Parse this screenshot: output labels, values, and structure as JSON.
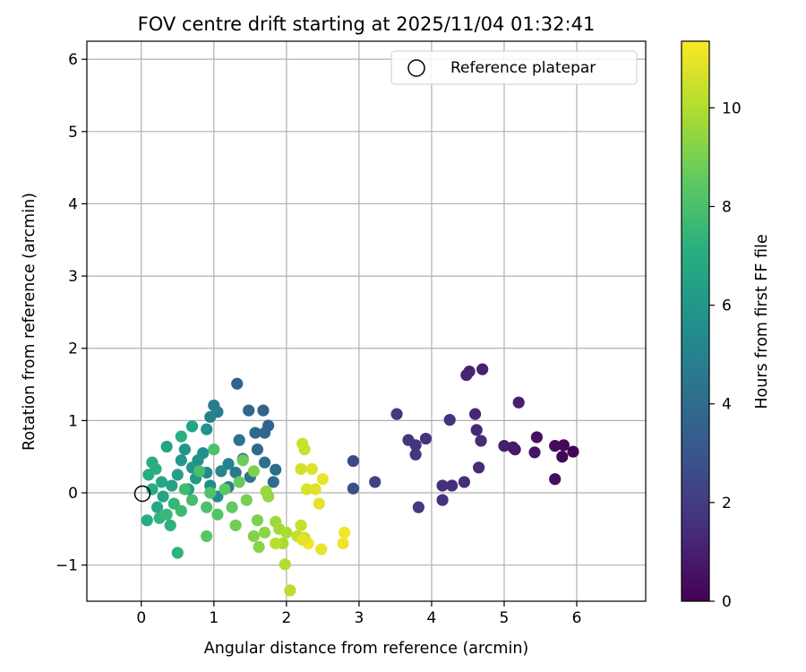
{
  "chart_data": {
    "type": "scatter",
    "title": "FOV centre drift starting at 2025/11/04 01:32:41",
    "xlabel": "Angular distance from reference (arcmin)",
    "ylabel": "Rotation from reference (arcmin)",
    "xlim": [
      -0.75,
      6.95
    ],
    "ylim": [
      -1.5,
      6.25
    ],
    "xticks": [
      0,
      1,
      2,
      3,
      4,
      5,
      6
    ],
    "yticks": [
      -1,
      0,
      1,
      2,
      3,
      4,
      5,
      6
    ],
    "xtick_labels": [
      "0",
      "1",
      "2",
      "3",
      "4",
      "5",
      "6"
    ],
    "ytick_labels": [
      "−1",
      "0",
      "1",
      "2",
      "3",
      "4",
      "5",
      "6"
    ],
    "grid": true,
    "legend": {
      "placement": "top-right",
      "label": "Reference platepar"
    },
    "reference_point": {
      "x": 0,
      "y": 0
    },
    "colorbar": {
      "label": "Hours from first FF file",
      "colormap": "viridis",
      "range": [
        0,
        11.35
      ],
      "ticks": [
        0,
        2,
        4,
        6,
        8,
        10
      ],
      "tick_labels": [
        "0",
        "2",
        "4",
        "6",
        "8",
        "10"
      ]
    },
    "points": [
      [
        5.95,
        0.57,
        0.1
      ],
      [
        5.8,
        0.5,
        0.15
      ],
      [
        5.82,
        0.66,
        0.25
      ],
      [
        5.7,
        0.65,
        0.35
      ],
      [
        5.7,
        0.19,
        0.45
      ],
      [
        5.45,
        0.77,
        0.55
      ],
      [
        5.42,
        0.56,
        0.65
      ],
      [
        5.15,
        0.6,
        0.75
      ],
      [
        5.12,
        0.63,
        0.85
      ],
      [
        5.0,
        0.65,
        0.95
      ],
      [
        5.2,
        1.25,
        1.0
      ],
      [
        4.7,
        1.71,
        1.1
      ],
      [
        4.52,
        1.68,
        1.15
      ],
      [
        4.48,
        1.63,
        1.2
      ],
      [
        4.6,
        1.09,
        1.25
      ],
      [
        4.62,
        0.87,
        1.3
      ],
      [
        4.68,
        0.72,
        1.35
      ],
      [
        4.65,
        0.35,
        1.4
      ],
      [
        4.45,
        0.15,
        1.45
      ],
      [
        4.28,
        0.1,
        1.5
      ],
      [
        4.15,
        0.1,
        1.55
      ],
      [
        4.15,
        -0.1,
        1.6
      ],
      [
        4.25,
        1.01,
        1.65
      ],
      [
        3.92,
        0.75,
        1.7
      ],
      [
        3.78,
        0.66,
        1.75
      ],
      [
        3.78,
        0.53,
        1.8
      ],
      [
        3.68,
        0.73,
        1.85
      ],
      [
        3.52,
        1.09,
        1.9
      ],
      [
        3.82,
        -0.2,
        1.95
      ],
      [
        3.22,
        0.15,
        2.3
      ],
      [
        2.92,
        0.44,
        2.55
      ],
      [
        2.92,
        0.06,
        2.75
      ],
      [
        1.32,
        1.51,
        3.6
      ],
      [
        1.75,
        0.93,
        3.6
      ],
      [
        1.68,
        1.14,
        3.7
      ],
      [
        1.48,
        1.14,
        3.8
      ],
      [
        1.7,
        0.83,
        3.8
      ],
      [
        1.57,
        0.83,
        3.9
      ],
      [
        1.6,
        0.6,
        4.0
      ],
      [
        1.85,
        0.32,
        4.0
      ],
      [
        1.82,
        0.15,
        4.1
      ],
      [
        1.7,
        0.42,
        4.2
      ],
      [
        1.5,
        0.22,
        4.3
      ],
      [
        1.35,
        0.73,
        4.3
      ],
      [
        1.4,
        0.47,
        4.5
      ],
      [
        1.3,
        0.28,
        4.6
      ],
      [
        1.2,
        0.08,
        4.7
      ],
      [
        1.0,
        1.21,
        4.8
      ],
      [
        1.05,
        1.12,
        4.9
      ],
      [
        0.95,
        1.05,
        5.0
      ],
      [
        1.2,
        0.4,
        5.1
      ],
      [
        1.1,
        0.3,
        5.2
      ],
      [
        0.9,
        0.28,
        5.3
      ],
      [
        0.95,
        0.1,
        5.4
      ],
      [
        1.05,
        -0.05,
        5.5
      ],
      [
        0.85,
        0.55,
        5.6
      ],
      [
        0.78,
        0.45,
        5.7
      ],
      [
        0.9,
        0.88,
        5.8
      ],
      [
        0.7,
        0.35,
        5.9
      ],
      [
        0.6,
        0.6,
        6.0
      ],
      [
        0.55,
        0.45,
        6.1
      ],
      [
        0.75,
        0.2,
        6.2
      ],
      [
        0.65,
        0.05,
        6.3
      ],
      [
        0.5,
        0.25,
        6.4
      ],
      [
        0.42,
        0.1,
        6.5
      ],
      [
        0.35,
        0.64,
        6.6
      ],
      [
        0.7,
        0.92,
        6.6
      ],
      [
        0.3,
        -0.05,
        6.7
      ],
      [
        0.28,
        0.15,
        6.8
      ],
      [
        0.22,
        -0.2,
        6.9
      ],
      [
        0.15,
        0.05,
        7.0
      ],
      [
        0.08,
        -0.38,
        7.0
      ],
      [
        0.1,
        0.25,
        7.1
      ],
      [
        0.15,
        0.42,
        7.1
      ],
      [
        0.2,
        0.33,
        7.2
      ],
      [
        0.55,
        0.78,
        7.2
      ],
      [
        0.5,
        -0.83,
        7.3
      ],
      [
        0.4,
        -0.45,
        7.3
      ],
      [
        0.25,
        -0.35,
        7.4
      ],
      [
        0.45,
        -0.15,
        7.5
      ],
      [
        0.35,
        -0.3,
        7.6
      ],
      [
        0.55,
        -0.25,
        7.7
      ],
      [
        0.6,
        0.05,
        7.8
      ],
      [
        0.7,
        -0.1,
        7.9
      ],
      [
        0.8,
        0.3,
        8.0
      ],
      [
        0.9,
        -0.2,
        8.1
      ],
      [
        1.0,
        0.6,
        8.1
      ],
      [
        0.95,
        0.0,
        8.2
      ],
      [
        1.05,
        -0.3,
        8.3
      ],
      [
        0.9,
        -0.6,
        8.4
      ],
      [
        1.15,
        0.05,
        8.5
      ],
      [
        1.25,
        -0.2,
        8.6
      ],
      [
        1.35,
        0.15,
        8.7
      ],
      [
        1.4,
        0.45,
        8.8
      ],
      [
        1.3,
        -0.45,
        8.9
      ],
      [
        1.45,
        -0.1,
        9.0
      ],
      [
        1.55,
        0.3,
        9.1
      ],
      [
        1.6,
        -0.38,
        9.1
      ],
      [
        1.55,
        -0.6,
        9.2
      ],
      [
        1.62,
        -0.75,
        9.3
      ],
      [
        1.7,
        -0.55,
        9.4
      ],
      [
        1.75,
        -0.05,
        9.5
      ],
      [
        1.72,
        0.02,
        9.6
      ],
      [
        1.85,
        -0.4,
        9.7
      ],
      [
        1.9,
        -0.5,
        9.8
      ],
      [
        1.95,
        -0.7,
        9.9
      ],
      [
        2.0,
        -0.55,
        10.0
      ],
      [
        1.98,
        -0.99,
        10.1
      ],
      [
        2.05,
        -1.35,
        10.2
      ],
      [
        2.15,
        -0.6,
        10.3
      ],
      [
        2.2,
        -0.45,
        10.4
      ],
      [
        2.25,
        0.6,
        10.5
      ],
      [
        2.22,
        0.68,
        10.5
      ],
      [
        2.2,
        0.33,
        10.6
      ],
      [
        2.28,
        0.05,
        10.7
      ],
      [
        2.35,
        0.33,
        10.8
      ],
      [
        2.4,
        0.05,
        10.8
      ],
      [
        2.45,
        -0.15,
        10.9
      ],
      [
        2.5,
        0.19,
        11.0
      ],
      [
        2.48,
        -0.78,
        11.0
      ],
      [
        2.78,
        -0.7,
        11.1
      ],
      [
        2.8,
        -0.55,
        11.2
      ],
      [
        2.3,
        -0.7,
        11.2
      ],
      [
        1.85,
        -0.7,
        10.2
      ],
      [
        2.25,
        -0.62,
        10.6
      ],
      [
        2.22,
        -0.65,
        10.9
      ]
    ]
  }
}
